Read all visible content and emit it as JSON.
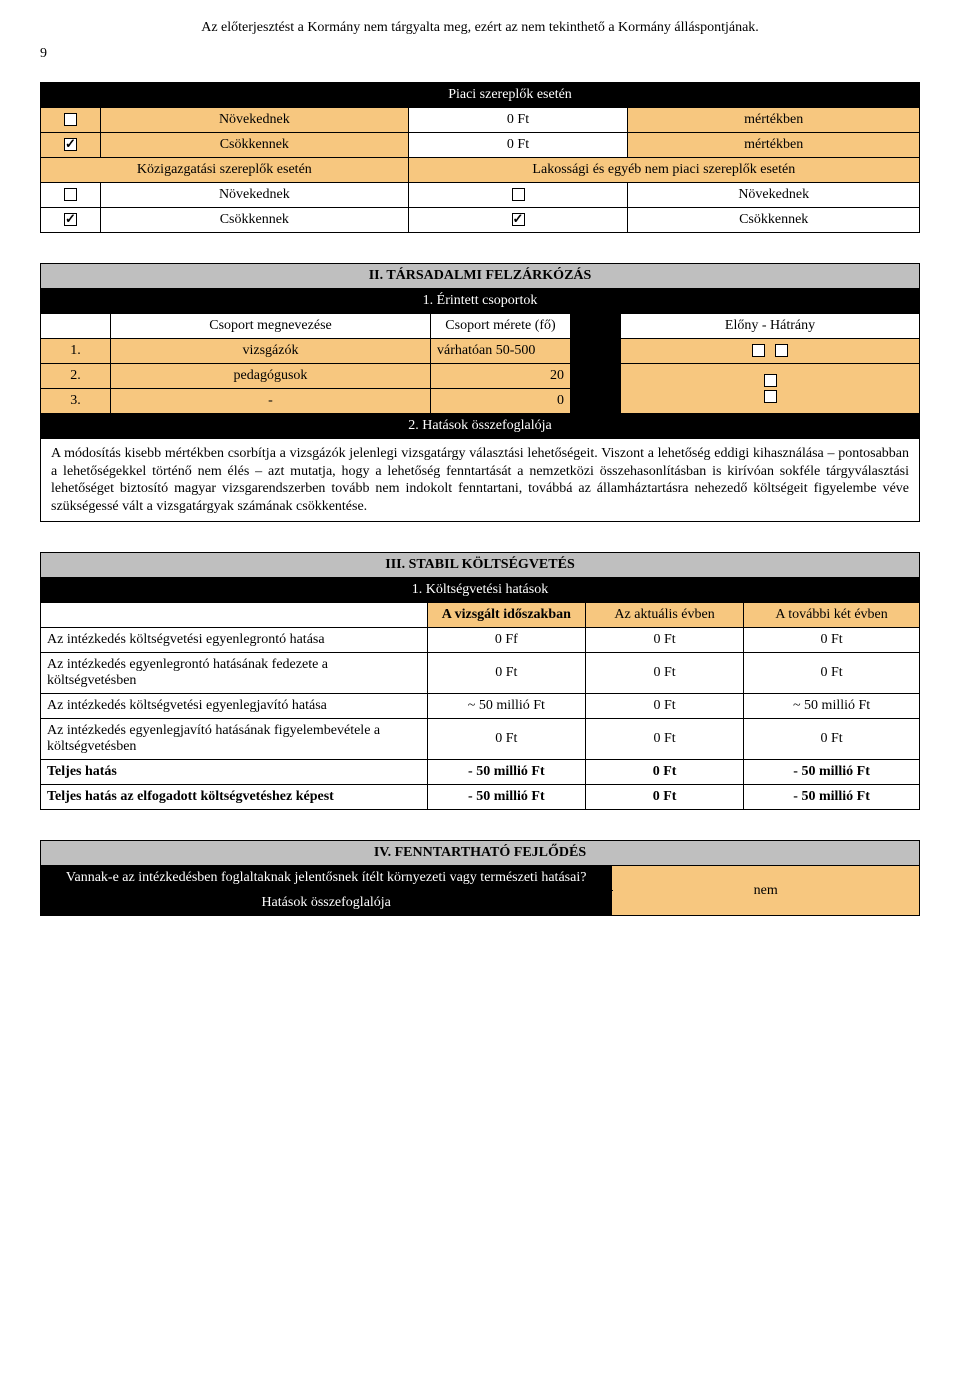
{
  "header": {
    "note": "Az előterjesztést a Kormány nem tárgyalta meg, ezért az nem tekinthető a Kormány álláspontjának.",
    "page_number": "9"
  },
  "market": {
    "title": "Piaci szereplők esetén",
    "row_increase_label": "Növekednek",
    "row_increase_value": "0 Ft",
    "row_increase_unit": "mértékben",
    "row_decrease_label": "Csökkennek",
    "row_decrease_value": "0 Ft",
    "row_decrease_unit": "mértékben",
    "gov_label": "Közigazgatási szereplők esetén",
    "public_label": "Lakossági és egyéb nem piaci szereplők esetén",
    "gov_increase": "Növekednek",
    "gov_decrease": "Csökkennek",
    "pub_increase": "Növekednek",
    "pub_decrease": "Csökkennek"
  },
  "section2": {
    "title": "II. TÁRSADALMI FELZÁRKÓZÁS",
    "sub1": "1. Érintett csoportok",
    "col_group": "Csoport megnevezése",
    "col_size": "Csoport mérete (fő)",
    "col_adv": "Előny - Hátrány",
    "rows": [
      {
        "n": "1.",
        "name": "vizsgázók",
        "size": "várhatóan 50-500"
      },
      {
        "n": "2.",
        "name": "pedagógusok",
        "size": "20"
      },
      {
        "n": "3.",
        "name": "-",
        "size": "0"
      }
    ],
    "sub2": "2. Hatások összefoglalója",
    "summary": "A módosítás kisebb mértékben csorbítja a vizsgázók jelenlegi vizsgatárgy választási lehetőségeit. Viszont a lehetőség eddigi kihasználása – pontosabban a lehetőségekkel történő nem élés – azt mutatja, hogy a lehetőség fenntartását a nemzetközi összehasonlításban is kirívóan sokféle tárgyválasztási lehetőséget biztosító magyar vizsgarendszerben tovább nem indokolt fenntartani, továbbá az államháztartásra nehezedő költségeit figyelembe véve szükségessé vált a vizsgatárgyak számának csökkentése."
  },
  "section3": {
    "title": "III. STABIL KÖLTSÉGVETÉS",
    "sub1": "1. Költségvetési hatások",
    "col_period": "A vizsgált időszakban",
    "col_current": "Az aktuális évben",
    "col_next": "A további két évben",
    "rows": [
      {
        "label": "Az intézkedés költségvetési egyenlegrontó hatása",
        "a": "0 Ff",
        "b": "0 Ft",
        "c": "0 Ft",
        "bold": false
      },
      {
        "label": "Az intézkedés egyenlegrontó hatásának fedezete a költségvetésben",
        "a": "0 Ft",
        "b": "0 Ft",
        "c": "0 Ft",
        "bold": false
      },
      {
        "label": "Az intézkedés költségvetési egyenlegjavító hatása",
        "a": "~ 50 millió Ft",
        "b": "0 Ft",
        "c": "~ 50 millió Ft",
        "bold": false
      },
      {
        "label": "Az intézkedés egyenlegjavító hatásának figyelembevétele a költségvetésben",
        "a": "0 Ft",
        "b": "0 Ft",
        "c": "0 Ft",
        "bold": false
      },
      {
        "label": "Teljes hatás",
        "a": "- 50 millió Ft",
        "b": "0 Ft",
        "c": "- 50 millió Ft",
        "bold": true
      },
      {
        "label": "Teljes hatás az elfogadott költségvetéshez képest",
        "a": "- 50 millió Ft",
        "b": "0 Ft",
        "c": "- 50 millió Ft",
        "bold": true
      }
    ]
  },
  "section4": {
    "title": "IV. FENNTARTHATÓ FEJLŐDÉS",
    "question": "Vannak-e az intézkedésben foglaltaknak jelentősnek ítélt környezeti vagy természeti hatásai?",
    "answer": "nem",
    "footer": "Hatások összefoglalója"
  }
}
